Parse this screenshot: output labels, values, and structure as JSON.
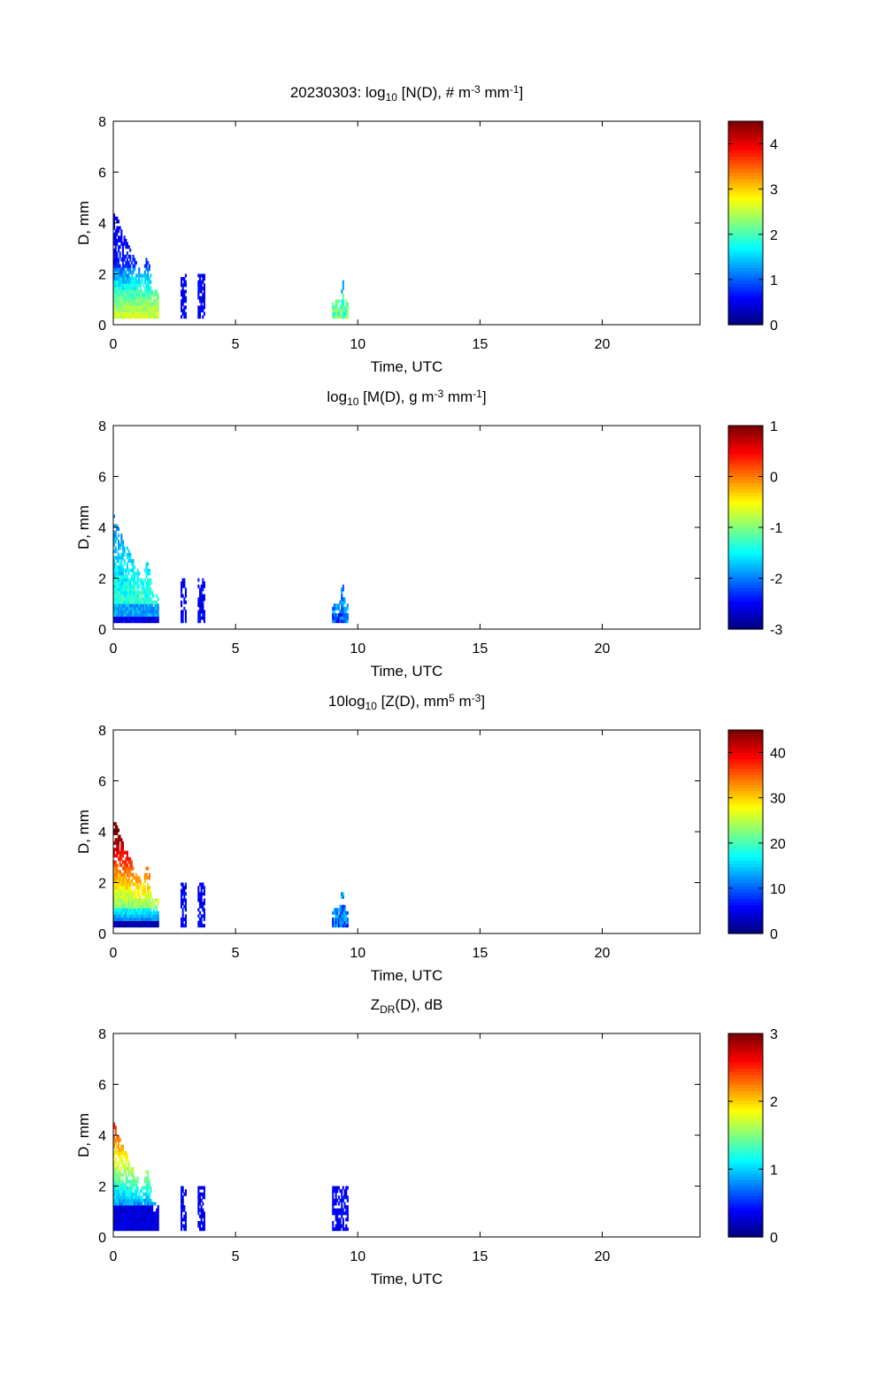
{
  "chart_data": [
    {
      "type": "heatmap",
      "title": {
        "prefix": "20230303: log",
        "sub": "10",
        "mid": " [N(D), # m",
        "sup1": "-3",
        "mid2": " mm",
        "sup2": "-1",
        "suffix": "]"
      },
      "xlabel": "Time, UTC",
      "ylabel": "D, mm",
      "xlim": [
        0,
        24
      ],
      "ylim": [
        0,
        8
      ],
      "xticks": [
        0,
        5,
        10,
        15,
        20
      ],
      "yticks": [
        0,
        2,
        4,
        6,
        8
      ],
      "colorbar": {
        "min": 0,
        "max": 4.5,
        "ticks": [
          0,
          1,
          2,
          3,
          4
        ],
        "colormap": "jet"
      },
      "bursts": [
        {
          "x": [
            0.0,
            1.85
          ],
          "profile": "n_main"
        },
        {
          "x": [
            2.75,
            2.95
          ],
          "profile": "n_mid"
        },
        {
          "x": [
            3.45,
            3.7
          ],
          "profile": "n_mid"
        },
        {
          "x": [
            8.95,
            9.6
          ],
          "profile": "n_late"
        }
      ]
    },
    {
      "type": "heatmap",
      "title": {
        "prefix": "log",
        "sub": "10",
        "mid": " [M(D), g m",
        "sup1": "-3",
        "mid2": " mm",
        "sup2": "-1",
        "suffix": "]"
      },
      "xlabel": "Time, UTC",
      "ylabel": "D, mm",
      "xlim": [
        0,
        24
      ],
      "ylim": [
        0,
        8
      ],
      "xticks": [
        0,
        5,
        10,
        15,
        20
      ],
      "yticks": [
        0,
        2,
        4,
        6,
        8
      ],
      "colorbar": {
        "min": -3,
        "max": 1,
        "ticks": [
          -3,
          -2,
          -1,
          0,
          1
        ],
        "colormap": "jet"
      },
      "bursts": [
        {
          "x": [
            0.0,
            1.85
          ],
          "profile": "m_main"
        },
        {
          "x": [
            2.75,
            2.95
          ],
          "profile": "low"
        },
        {
          "x": [
            3.45,
            3.7
          ],
          "profile": "low"
        },
        {
          "x": [
            8.95,
            9.6
          ],
          "profile": "m_late"
        }
      ]
    },
    {
      "type": "heatmap",
      "title": {
        "prefix": "10log",
        "sub": "10",
        "mid": " [Z(D),  mm",
        "sup1": "5",
        "mid2": " m",
        "sup2": "-3",
        "suffix": "]"
      },
      "xlabel": "Time, UTC",
      "ylabel": "D, mm",
      "xlim": [
        0,
        24
      ],
      "ylim": [
        0,
        8
      ],
      "xticks": [
        0,
        5,
        10,
        15,
        20
      ],
      "yticks": [
        0,
        2,
        4,
        6,
        8
      ],
      "colorbar": {
        "min": 0,
        "max": 45,
        "ticks": [
          0,
          10,
          20,
          30,
          40
        ],
        "colormap": "jet"
      },
      "bursts": [
        {
          "x": [
            0.0,
            1.85
          ],
          "profile": "z_main"
        },
        {
          "x": [
            2.75,
            2.95
          ],
          "profile": "low"
        },
        {
          "x": [
            3.45,
            3.7
          ],
          "profile": "low"
        },
        {
          "x": [
            8.95,
            9.6
          ],
          "profile": "m_late"
        }
      ]
    },
    {
      "type": "heatmap",
      "title": {
        "prefix": "Z",
        "sub": "DR",
        "mid": "(D), dB",
        "sup1": "",
        "mid2": "",
        "sup2": "",
        "suffix": ""
      },
      "xlabel": "Time, UTC",
      "ylabel": "D, mm",
      "xlim": [
        0,
        24
      ],
      "ylim": [
        0,
        8
      ],
      "xticks": [
        0,
        5,
        10,
        15,
        20
      ],
      "yticks": [
        0,
        2,
        4,
        6,
        8
      ],
      "colorbar": {
        "min": 0,
        "max": 3,
        "ticks": [
          0,
          1,
          2,
          3
        ],
        "colormap": "jet"
      },
      "bursts": [
        {
          "x": [
            0.0,
            1.85
          ],
          "profile": "zdr_main"
        },
        {
          "x": [
            2.75,
            2.95
          ],
          "profile": "low"
        },
        {
          "x": [
            3.45,
            3.7
          ],
          "profile": "low"
        },
        {
          "x": [
            8.95,
            9.6
          ],
          "profile": "low"
        }
      ]
    }
  ]
}
